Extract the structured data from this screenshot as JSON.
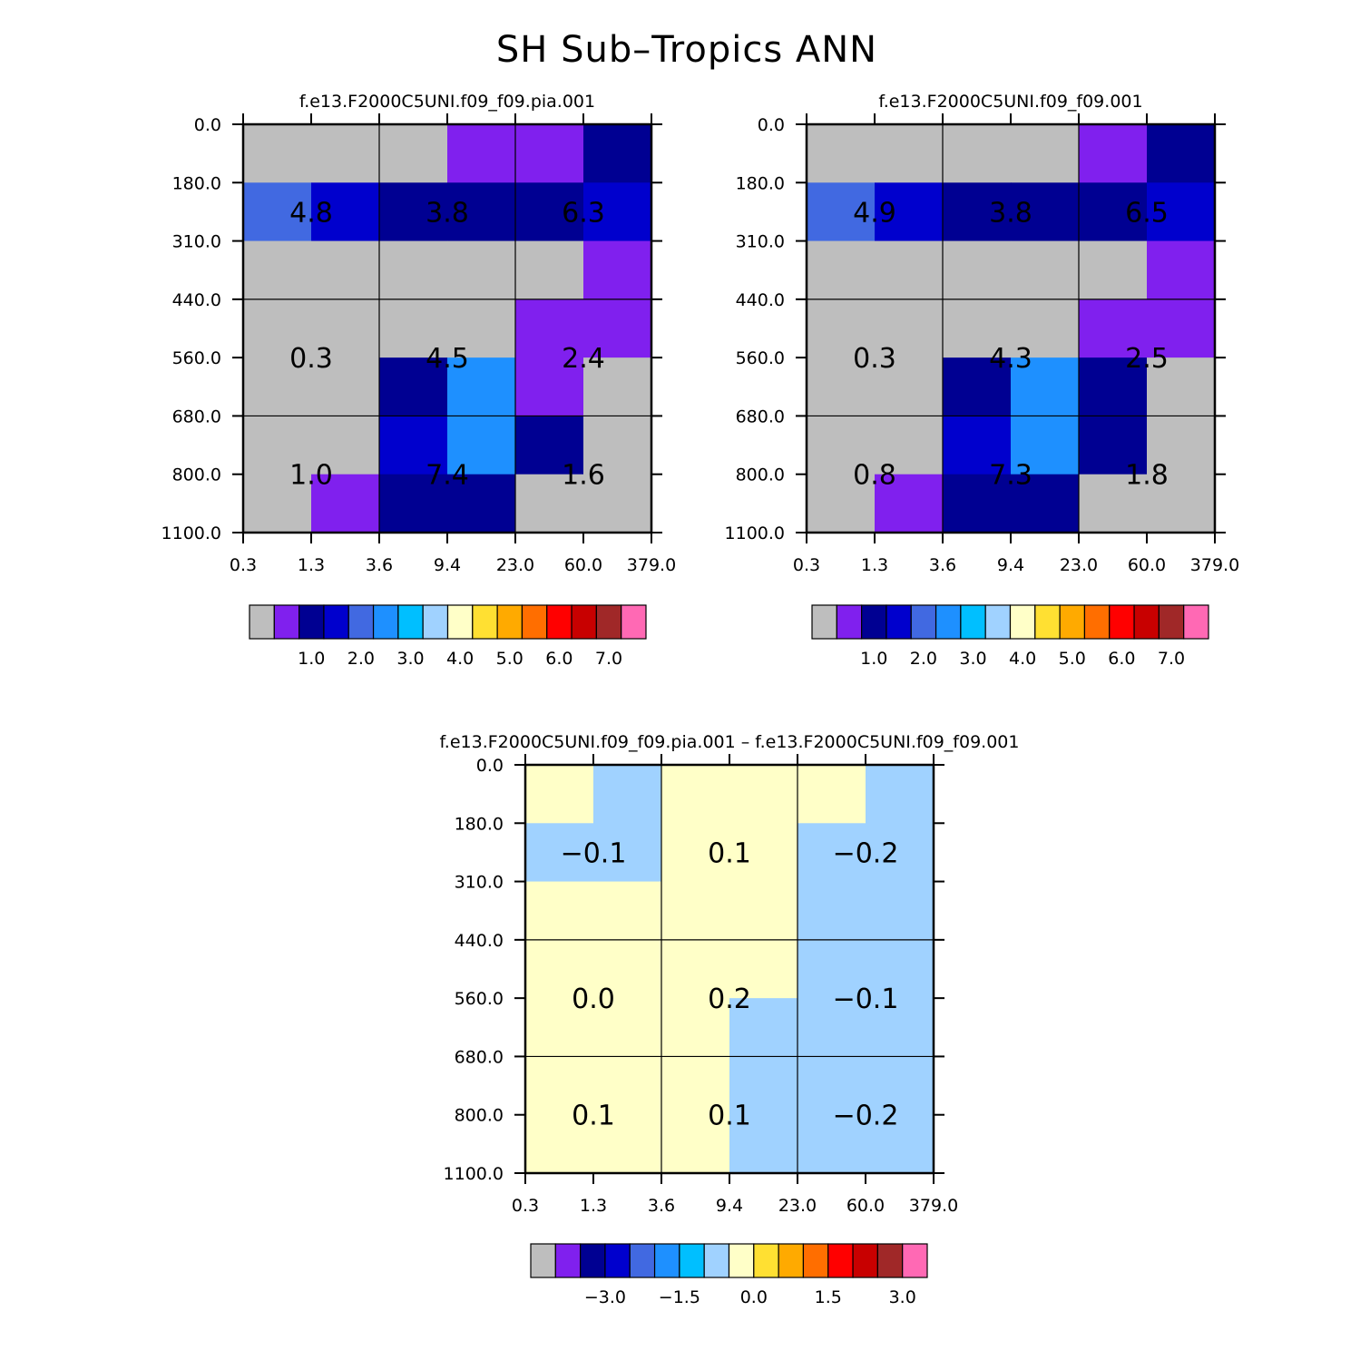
{
  "main_title": "SH Sub–Tropics ANN",
  "colors": {
    "c0": "#bebebe",
    "c1": "#8020ee",
    "c2": "#000092",
    "c3": "#0000cd",
    "c4": "#4169e1",
    "c5": "#1e90ff",
    "c6": "#00bfff",
    "c7": "#a0d2ff",
    "c8": "#ffffc8",
    "c9": "#ffe032",
    "c10": "#ffaa00",
    "c11": "#ff6e00",
    "c12": "#ff0000",
    "c13": "#c80000",
    "c14": "#a02828",
    "c15": "#ff69b4"
  },
  "colorbar_colors": [
    "c0",
    "c1",
    "c2",
    "c3",
    "c4",
    "c5",
    "c6",
    "c7",
    "c8",
    "c9",
    "c10",
    "c11",
    "c12",
    "c13",
    "c14",
    "c15"
  ],
  "chart_data": [
    {
      "id": "top-left",
      "type": "heatmap",
      "title": "f.e13.F2000C5UNI.f09_f09.pia.001",
      "x_tick_labels": [
        "0.3",
        "1.3",
        "3.6",
        "9.4",
        "23.0",
        "60.0",
        "379.0"
      ],
      "y_tick_labels": [
        "0.0",
        "180.0",
        "310.0",
        "440.0",
        "560.0",
        "680.0",
        "800.0",
        "1100.0"
      ],
      "cells": [
        [
          "c0",
          "c0",
          "c0",
          "c1",
          "c1",
          "c2"
        ],
        [
          "c4",
          "c3",
          "c2",
          "c2",
          "c2",
          "c3"
        ],
        [
          "c0",
          "c0",
          "c0",
          "c0",
          "c0",
          "c1"
        ],
        [
          "c0",
          "c0",
          "c0",
          "c0",
          "c1",
          "c1"
        ],
        [
          "c0",
          "c0",
          "c2",
          "c5",
          "c1",
          "c0"
        ],
        [
          "c0",
          "c0",
          "c3",
          "c5",
          "c2",
          "c0"
        ],
        [
          "c0",
          "c1",
          "c2",
          "c2",
          "c0",
          "c0"
        ]
      ],
      "labels": [
        [
          "4.8",
          "3.8",
          "6.3"
        ],
        [
          "0.3",
          "4.5",
          "2.4"
        ],
        [
          "1.0",
          "7.4",
          "1.6"
        ]
      ],
      "colorbar_labels": [
        "1.0",
        "2.0",
        "3.0",
        "4.0",
        "5.0",
        "6.0",
        "7.0"
      ]
    },
    {
      "id": "top-right",
      "type": "heatmap",
      "title": "f.e13.F2000C5UNI.f09_f09.001",
      "x_tick_labels": [
        "0.3",
        "1.3",
        "3.6",
        "9.4",
        "23.0",
        "60.0",
        "379.0"
      ],
      "y_tick_labels": [
        "0.0",
        "180.0",
        "310.0",
        "440.0",
        "560.0",
        "680.0",
        "800.0",
        "1100.0"
      ],
      "cells": [
        [
          "c0",
          "c0",
          "c0",
          "c0",
          "c1",
          "c2"
        ],
        [
          "c4",
          "c3",
          "c2",
          "c2",
          "c2",
          "c3"
        ],
        [
          "c0",
          "c0",
          "c0",
          "c0",
          "c0",
          "c1"
        ],
        [
          "c0",
          "c0",
          "c0",
          "c0",
          "c1",
          "c1"
        ],
        [
          "c0",
          "c0",
          "c2",
          "c5",
          "c2",
          "c0"
        ],
        [
          "c0",
          "c0",
          "c3",
          "c5",
          "c2",
          "c0"
        ],
        [
          "c0",
          "c1",
          "c2",
          "c2",
          "c0",
          "c0"
        ]
      ],
      "labels": [
        [
          "4.9",
          "3.8",
          "6.5"
        ],
        [
          "0.3",
          "4.3",
          "2.5"
        ],
        [
          "0.8",
          "7.3",
          "1.8"
        ]
      ],
      "colorbar_labels": [
        "1.0",
        "2.0",
        "3.0",
        "4.0",
        "5.0",
        "6.0",
        "7.0"
      ]
    },
    {
      "id": "bottom",
      "type": "heatmap",
      "title": "f.e13.F2000C5UNI.f09_f09.pia.001 – f.e13.F2000C5UNI.f09_f09.001",
      "x_tick_labels": [
        "0.3",
        "1.3",
        "3.6",
        "9.4",
        "23.0",
        "60.0",
        "379.0"
      ],
      "y_tick_labels": [
        "0.0",
        "180.0",
        "310.0",
        "440.0",
        "560.0",
        "680.0",
        "800.0",
        "1100.0"
      ],
      "cells": [
        [
          "c8",
          "c7",
          "c8",
          "c8",
          "c8",
          "c7"
        ],
        [
          "c7",
          "c7",
          "c8",
          "c8",
          "c7",
          "c7"
        ],
        [
          "c8",
          "c8",
          "c8",
          "c8",
          "c7",
          "c7"
        ],
        [
          "c8",
          "c8",
          "c8",
          "c8",
          "c7",
          "c7"
        ],
        [
          "c8",
          "c8",
          "c8",
          "c7",
          "c7",
          "c7"
        ],
        [
          "c8",
          "c8",
          "c8",
          "c7",
          "c7",
          "c7"
        ],
        [
          "c8",
          "c8",
          "c8",
          "c7",
          "c7",
          "c7"
        ]
      ],
      "labels": [
        [
          "−0.1",
          "0.1",
          "−0.2"
        ],
        [
          "0.0",
          "0.2",
          "−0.1"
        ],
        [
          "0.1",
          "0.1",
          "−0.2"
        ]
      ],
      "colorbar_labels": [
        "−3.0",
        "−1.5",
        "0.0",
        "1.5",
        "3.0"
      ]
    }
  ]
}
